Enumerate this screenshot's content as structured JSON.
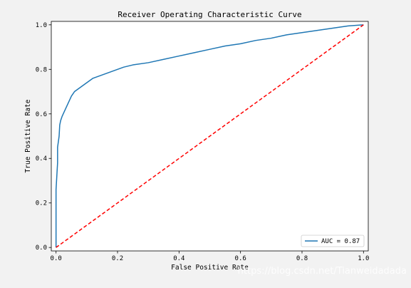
{
  "chart_data": {
    "type": "line",
    "title": "Receiver Operating Characteristic Curve",
    "xlabel": "False Positive Rate",
    "ylabel": "True Positive Rate",
    "xlim": [
      0.0,
      1.0
    ],
    "ylim": [
      0.0,
      1.0
    ],
    "xticks": [
      "0.0",
      "0.2",
      "0.4",
      "0.6",
      "0.8",
      "1.0"
    ],
    "yticks": [
      "0.0",
      "0.2",
      "0.4",
      "0.6",
      "0.8",
      "1.0"
    ],
    "grid": false,
    "legend_position": "lower-right",
    "series": [
      {
        "name": "AUC = 0.87",
        "color": "#1f77b4",
        "style": "solid",
        "x": [
          0.0,
          0.0,
          0.005,
          0.005,
          0.01,
          0.012,
          0.015,
          0.02,
          0.03,
          0.04,
          0.05,
          0.06,
          0.07,
          0.08,
          0.09,
          0.1,
          0.12,
          0.14,
          0.16,
          0.18,
          0.2,
          0.22,
          0.25,
          0.3,
          0.35,
          0.4,
          0.45,
          0.5,
          0.55,
          0.6,
          0.65,
          0.7,
          0.75,
          0.8,
          0.85,
          0.9,
          0.95,
          1.0
        ],
        "y": [
          0.0,
          0.26,
          0.38,
          0.45,
          0.5,
          0.55,
          0.57,
          0.59,
          0.62,
          0.65,
          0.68,
          0.7,
          0.71,
          0.72,
          0.73,
          0.74,
          0.76,
          0.77,
          0.78,
          0.79,
          0.8,
          0.81,
          0.82,
          0.83,
          0.845,
          0.86,
          0.875,
          0.89,
          0.905,
          0.915,
          0.93,
          0.94,
          0.955,
          0.965,
          0.975,
          0.985,
          0.995,
          1.0
        ]
      },
      {
        "name": "",
        "color": "#ff0000",
        "style": "dashed",
        "x": [
          0.0,
          1.0
        ],
        "y": [
          0.0,
          1.0
        ]
      }
    ]
  },
  "watermark": "https://blog.csdn.net/Tianweidadada"
}
